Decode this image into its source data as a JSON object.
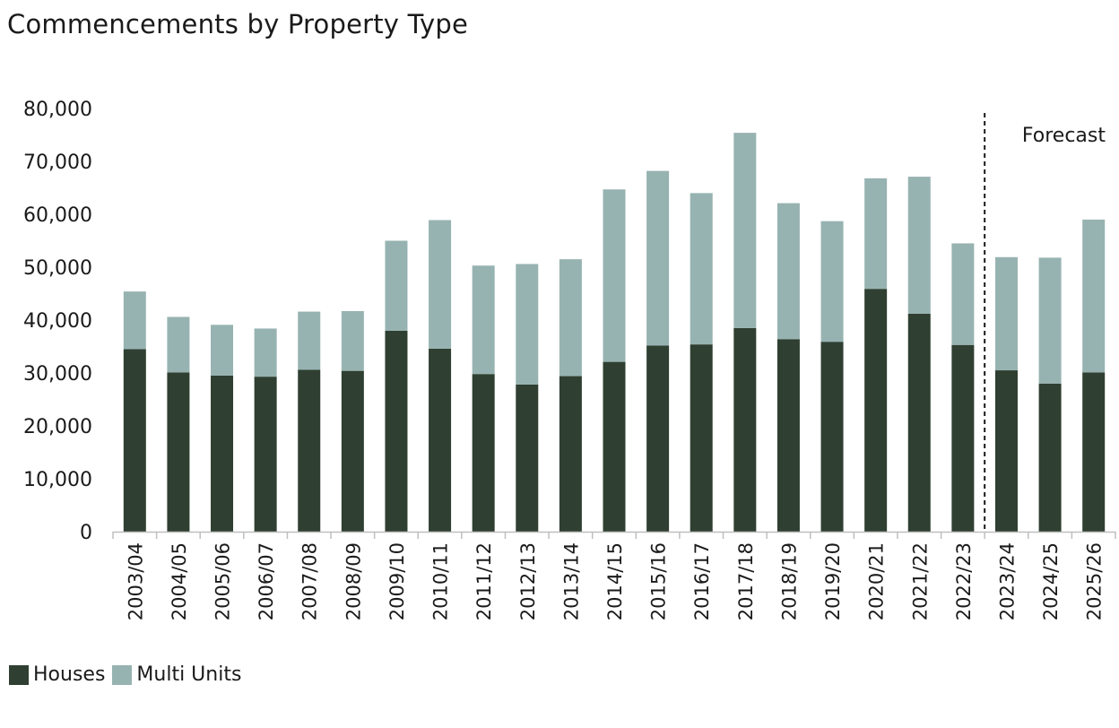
{
  "chart_data": {
    "type": "bar",
    "stacked": true,
    "title": "Commencements by Property Type",
    "categories": [
      "2003/04",
      "2004/05",
      "2005/06",
      "2006/07",
      "2007/08",
      "2008/09",
      "2009/10",
      "2010/11",
      "2011/12",
      "2012/13",
      "2013/14",
      "2014/15",
      "2015/16",
      "2016/17",
      "2017/18",
      "2018/19",
      "2019/20",
      "2020/21",
      "2021/22",
      "2022/23",
      "2023/24",
      "2024/25",
      "2025/26"
    ],
    "series": [
      {
        "name": "Houses",
        "color": "#2f3f31",
        "values": [
          34500,
          30100,
          29500,
          29300,
          30600,
          30400,
          38000,
          34600,
          29800,
          27800,
          29400,
          32100,
          35200,
          35400,
          38500,
          36400,
          35900,
          45900,
          41200,
          35300,
          30500,
          28000,
          30100
        ]
      },
      {
        "name": "Multi Units",
        "color": "#97b3b1",
        "values": [
          10900,
          10500,
          9600,
          9100,
          11000,
          11300,
          17000,
          24300,
          20500,
          22800,
          22100,
          32600,
          33000,
          28600,
          36900,
          25700,
          22800,
          20900,
          25900,
          19200,
          21400,
          23800,
          28900
        ]
      }
    ],
    "ylim": [
      0,
      80000
    ],
    "yticks": [
      "0",
      "10,000",
      "20,000",
      "30,000",
      "40,000",
      "50,000",
      "60,000",
      "70,000",
      "80,000"
    ],
    "xlabel": "",
    "ylabel": "",
    "grid": false,
    "legend": "bottom-left",
    "forecast_label": "Forecast",
    "forecast_after_category": "2022/23"
  }
}
